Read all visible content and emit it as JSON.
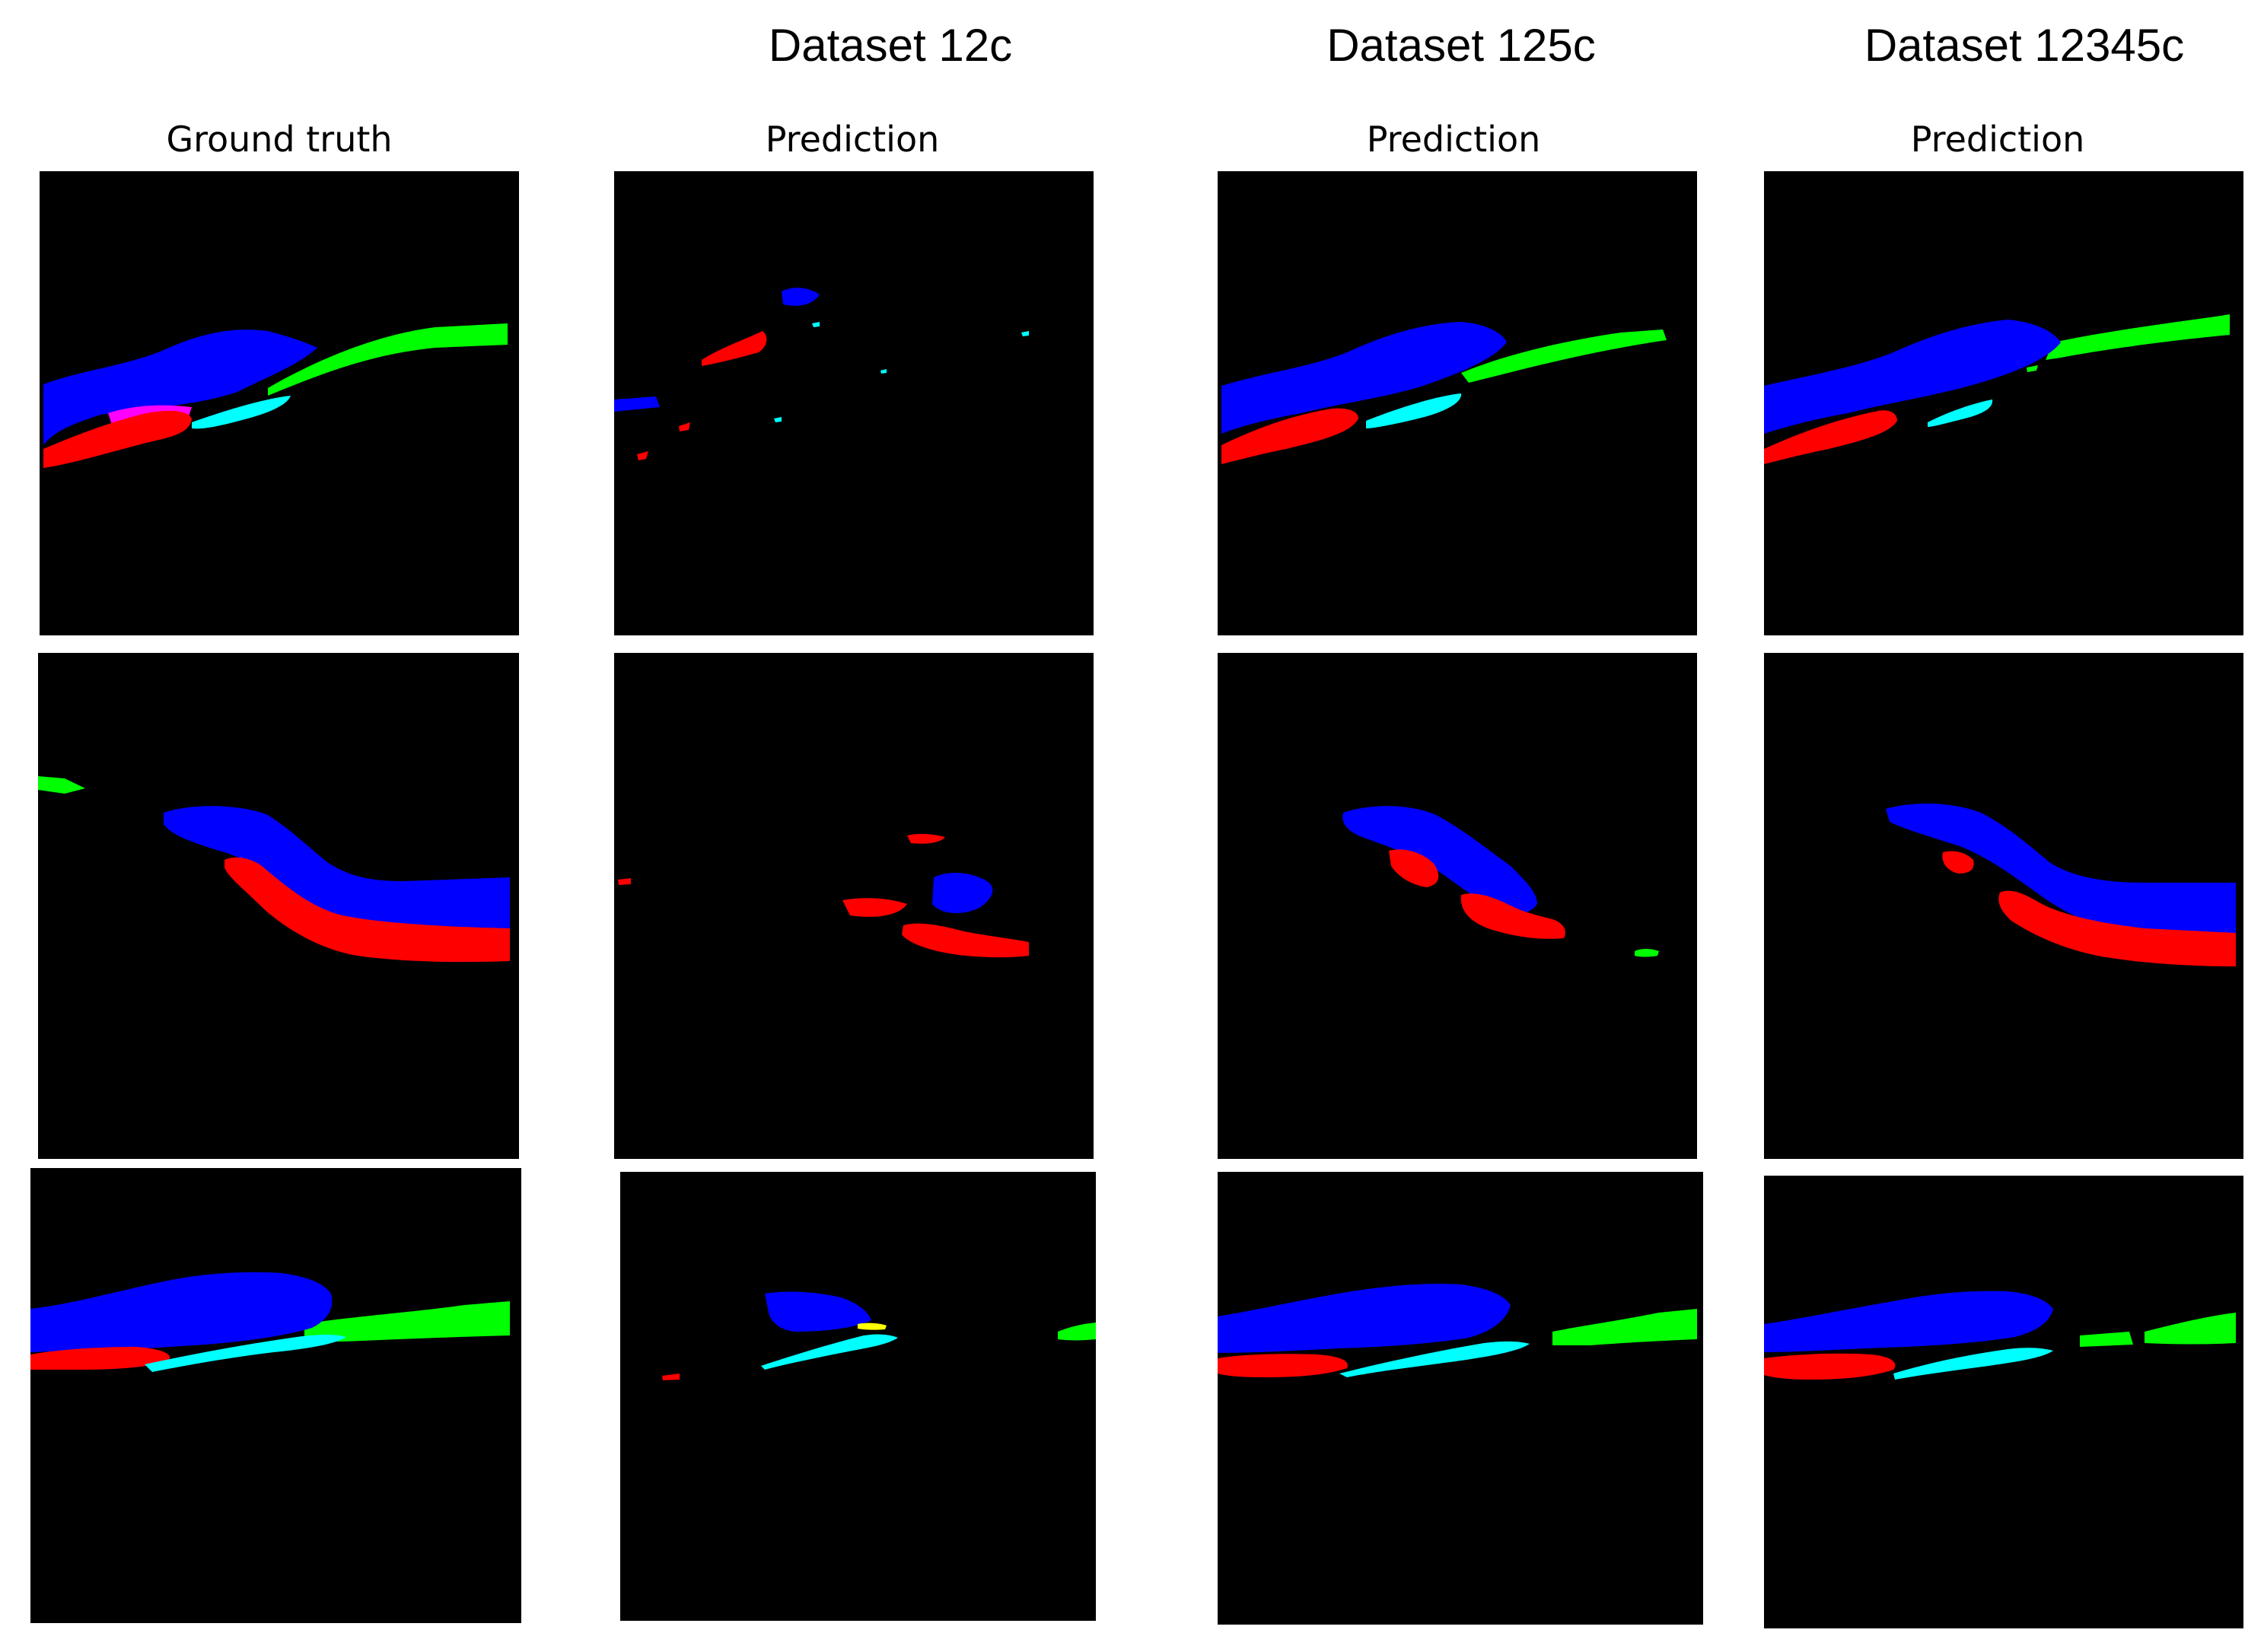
{
  "column_headers": {
    "ground_truth": "Ground truth",
    "d12c": "Prediction",
    "d125c": "Prediction",
    "d12345c": "Prediction"
  },
  "dataset_titles": {
    "d12c": "Dataset 12c",
    "d125c": "Dataset 125c",
    "d12345c": "Dataset 12345c"
  },
  "class_colors": {
    "blue": "#0000ff",
    "red": "#ff0000",
    "green": "#00ff00",
    "cyan": "#00ffff",
    "yellow": "#ffff00",
    "magenta": "#ff00ff",
    "background": "#000000"
  }
}
